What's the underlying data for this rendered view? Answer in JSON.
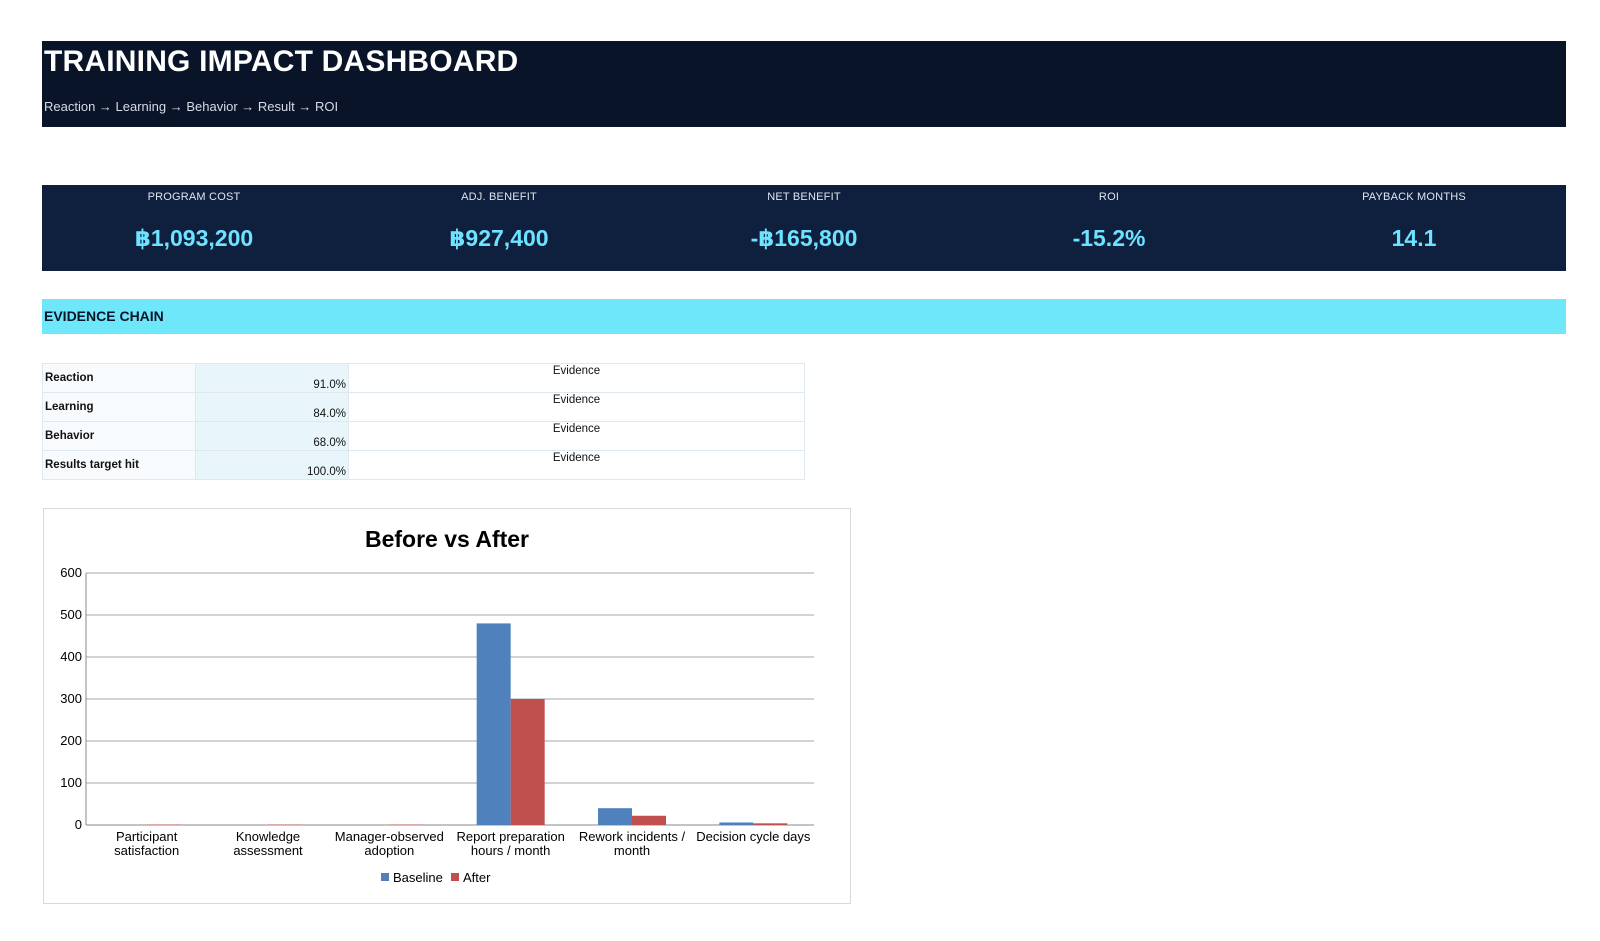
{
  "header": {
    "title": "TRAINING IMPACT DASHBOARD",
    "subtitle": "Reaction → Learning → Behavior → Result → ROI"
  },
  "kpis": [
    {
      "label": "PROGRAM COST",
      "value": "฿1,093,200"
    },
    {
      "label": "ADJ. BENEFIT",
      "value": "฿927,400"
    },
    {
      "label": "NET BENEFIT",
      "value": "-฿165,800"
    },
    {
      "label": "ROI",
      "value": "-15.2%"
    },
    {
      "label": "PAYBACK MONTHS",
      "value": "14.1"
    }
  ],
  "section": {
    "label": "EVIDENCE CHAIN"
  },
  "evidence": [
    {
      "level": "Reaction",
      "value": "91.0%",
      "evidence": "Evidence"
    },
    {
      "level": "Learning",
      "value": "84.0%",
      "evidence": "Evidence"
    },
    {
      "level": "Behavior",
      "value": "68.0%",
      "evidence": "Evidence"
    },
    {
      "level": "Results target hit",
      "value": "100.0%",
      "evidence": "Evidence"
    }
  ],
  "colors": {
    "header_bg": "#0a1428",
    "kpi_bg": "#0f1f3e",
    "kpi_value": "#6ee3ff",
    "section_bg": "#6ee7fb",
    "baseline": "#4f81bd",
    "after": "#c0504d"
  },
  "chart_data": {
    "type": "bar",
    "title": "Before vs After",
    "categories": [
      [
        "Participant",
        "satisfaction"
      ],
      [
        "Knowledge",
        "assessment"
      ],
      [
        "Manager-observed",
        "adoption"
      ],
      [
        "Report preparation",
        "hours / month"
      ],
      [
        "Rework incidents /",
        "month"
      ],
      [
        "Decision cycle days"
      ]
    ],
    "series": [
      {
        "name": "Baseline",
        "values": [
          0,
          0,
          0,
          480,
          40,
          6
        ]
      },
      {
        "name": "After",
        "values": [
          1,
          1,
          1,
          300,
          22,
          4
        ]
      }
    ],
    "ylim": [
      0,
      600
    ],
    "yticks": [
      0,
      100,
      200,
      300,
      400,
      500,
      600
    ],
    "grid": true,
    "legend": "bottom"
  }
}
